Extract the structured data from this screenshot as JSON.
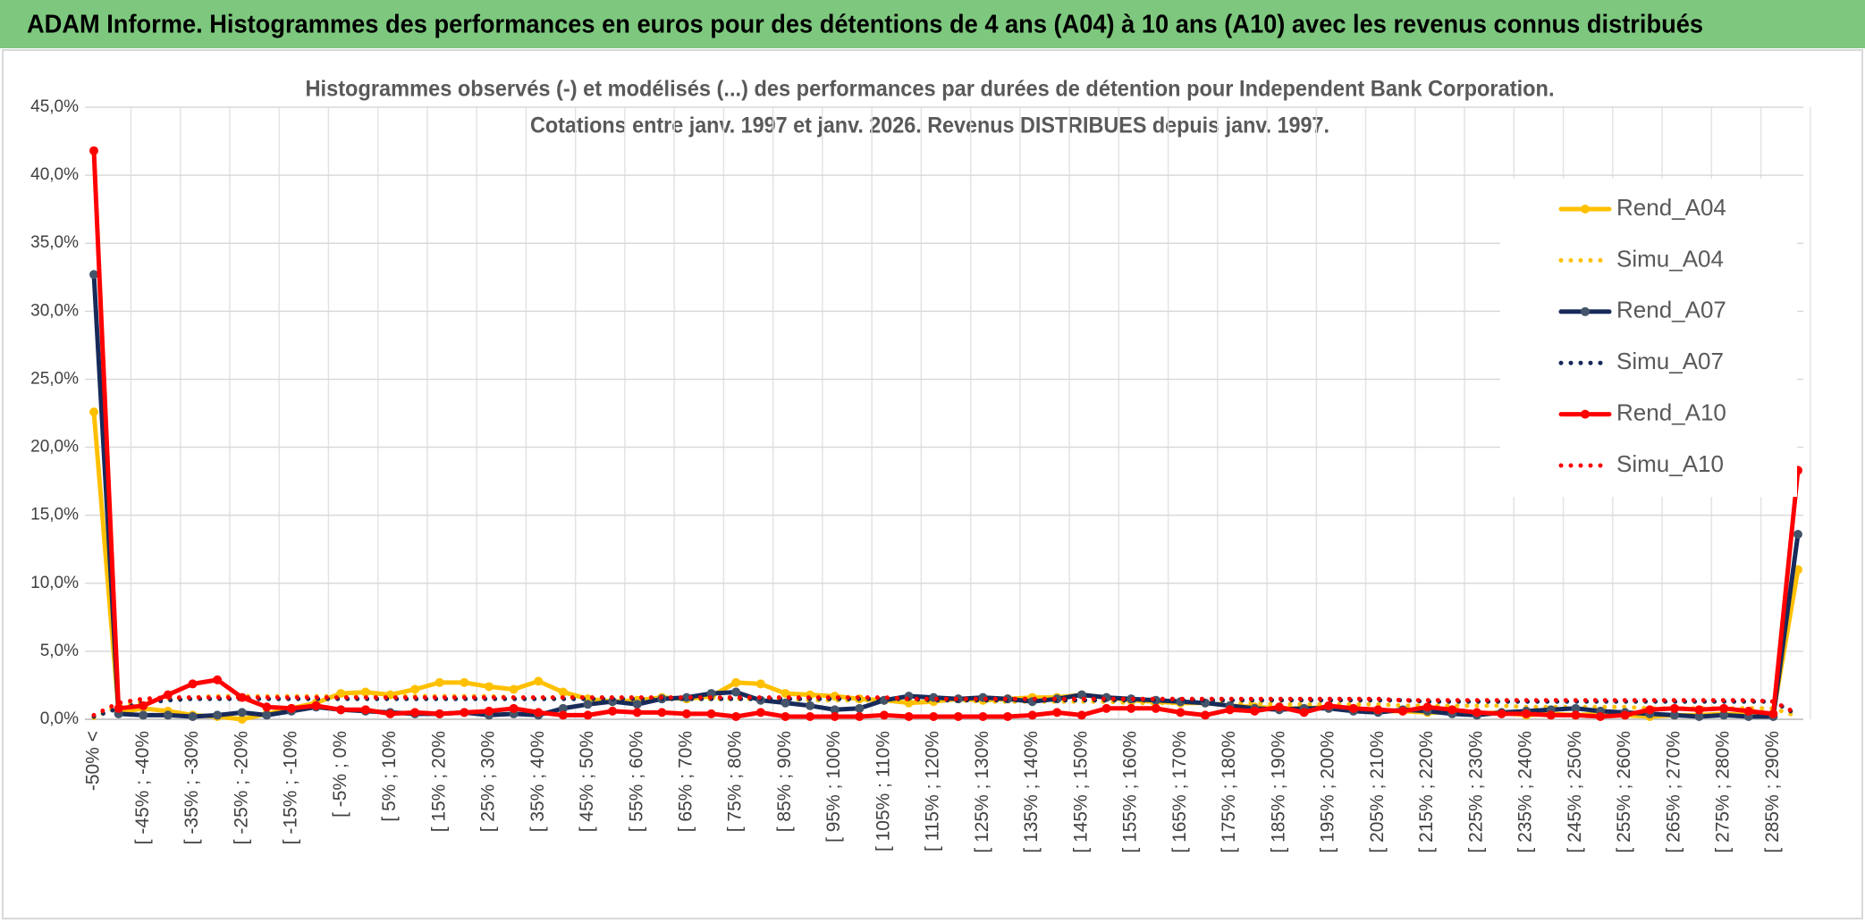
{
  "header": {
    "title": "ADAM Informe. Histogrammes des performances en euros pour des détentions de 4 ans (A04) à 10 ans (A10) avec les revenus connus distribués"
  },
  "chart_data": {
    "type": "line",
    "title": "Histogrammes observés (-) et modélisés (...) des performances par durées de détention pour Independent Bank Corporation.",
    "subtitle": "Cotations entre janv. 1997 et janv. 2026.  Revenus DISTRIBUES depuis janv. 1997.",
    "categories": [
      "-50% <",
      null,
      "[ -45% ; -40%",
      null,
      "[ -35% ; -30%",
      null,
      "[ -25% ; -20%",
      null,
      "[ -15% ; -10%",
      null,
      "[ -5% ; 0%",
      null,
      "[ 5% ; 10%",
      null,
      "[ 15% ; 20%",
      null,
      "[ 25% ; 30%",
      null,
      "[ 35% ; 40%",
      null,
      "[ 45% ; 50%",
      null,
      "[ 55% ; 60%",
      null,
      "[ 65% ; 70%",
      null,
      "[ 75% ; 80%",
      null,
      "[ 85% ; 90%",
      null,
      "[ 95% ; 100%",
      null,
      "[ 105% ; 110%",
      null,
      "[ 115% ; 120%",
      null,
      "[ 125% ; 130%",
      null,
      "[ 135% ; 140%",
      null,
      "[ 145% ; 150%",
      null,
      "[ 155% ; 160%",
      null,
      "[ 165% ; 170%",
      null,
      "[ 175% ; 180%",
      null,
      "[ 185% ; 190%",
      null,
      "[ 195% ; 200%",
      null,
      "[ 205% ; 210%",
      null,
      "[ 215% ; 220%",
      null,
      "[ 225% ; 230%",
      null,
      "[ 235% ; 240%",
      null,
      "[ 245% ; 250%",
      null,
      "[ 255% ; 260%",
      null,
      "[ 265% ; 270%",
      null,
      "[ 275% ; 280%",
      null,
      "[ 285% ; 290%",
      null
    ],
    "series": [
      {
        "name": "Rend_A04",
        "color": "#ffc000",
        "line_style": "solid",
        "values": [
          22.6,
          0.5,
          0.8,
          0.6,
          0.3,
          0.2,
          0.0,
          0.4,
          0.8,
          1.2,
          1.9,
          2.0,
          1.8,
          2.2,
          2.7,
          2.7,
          2.4,
          2.2,
          2.8,
          2.0,
          1.5,
          1.3,
          1.4,
          1.6,
          1.5,
          1.7,
          2.7,
          2.6,
          1.9,
          1.8,
          1.7,
          1.5,
          1.4,
          1.2,
          1.3,
          1.5,
          1.4,
          1.5,
          1.6,
          1.6,
          1.8,
          1.6,
          1.4,
          1.3,
          1.2,
          1.2,
          1.0,
          0.9,
          0.8,
          0.8,
          0.9,
          0.7,
          0.6,
          0.6,
          0.5,
          0.5,
          0.4,
          0.5,
          0.3,
          0.4,
          0.3,
          0.4,
          0.3,
          0.2,
          0.3,
          0.3,
          0.4,
          0.3,
          0.4,
          11.0
        ]
      },
      {
        "name": "Simu_A04",
        "color": "#ffc000",
        "line_style": "dotted",
        "values": [
          0.1,
          1.0,
          1.3,
          1.5,
          1.6,
          1.7,
          1.7,
          1.7,
          1.7,
          1.7,
          1.7,
          1.7,
          1.7,
          1.7,
          1.7,
          1.7,
          1.7,
          1.6,
          1.6,
          1.6,
          1.6,
          1.6,
          1.6,
          1.5,
          1.5,
          1.5,
          1.5,
          1.5,
          1.5,
          1.4,
          1.4,
          1.4,
          1.4,
          1.4,
          1.4,
          1.4,
          1.3,
          1.3,
          1.3,
          1.3,
          1.3,
          1.3,
          1.2,
          1.2,
          1.2,
          1.2,
          1.2,
          1.2,
          1.1,
          1.1,
          1.1,
          1.1,
          1.1,
          1.0,
          1.0,
          1.0,
          1.0,
          1.0,
          0.9,
          0.9,
          0.9,
          0.9,
          0.9,
          0.8,
          0.8,
          0.8,
          0.8,
          0.8,
          0.8,
          0.2
        ]
      },
      {
        "name": "Rend_A07",
        "color": "#172a5a",
        "line_style": "solid",
        "values": [
          32.7,
          0.4,
          0.3,
          0.3,
          0.2,
          0.3,
          0.5,
          0.3,
          0.6,
          0.9,
          0.7,
          0.6,
          0.5,
          0.4,
          0.4,
          0.5,
          0.3,
          0.4,
          0.3,
          0.8,
          1.1,
          1.3,
          1.1,
          1.5,
          1.6,
          1.9,
          2.0,
          1.4,
          1.2,
          1.0,
          0.7,
          0.8,
          1.4,
          1.7,
          1.6,
          1.5,
          1.6,
          1.5,
          1.3,
          1.5,
          1.8,
          1.6,
          1.5,
          1.4,
          1.3,
          1.2,
          1.0,
          0.8,
          0.7,
          0.8,
          0.8,
          0.6,
          0.5,
          0.7,
          0.6,
          0.4,
          0.3,
          0.5,
          0.6,
          0.7,
          0.8,
          0.6,
          0.5,
          0.4,
          0.3,
          0.2,
          0.3,
          0.2,
          0.2,
          13.6
        ]
      },
      {
        "name": "Simu_A07",
        "color": "#172a5a",
        "line_style": "dotted",
        "values": [
          0.2,
          0.8,
          1.2,
          1.4,
          1.5,
          1.5,
          1.5,
          1.5,
          1.5,
          1.5,
          1.5,
          1.5,
          1.5,
          1.5,
          1.5,
          1.5,
          1.5,
          1.5,
          1.5,
          1.5,
          1.5,
          1.5,
          1.5,
          1.5,
          1.5,
          1.5,
          1.5,
          1.5,
          1.5,
          1.5,
          1.5,
          1.5,
          1.5,
          1.5,
          1.4,
          1.4,
          1.4,
          1.4,
          1.4,
          1.4,
          1.4,
          1.4,
          1.4,
          1.4,
          1.4,
          1.4,
          1.4,
          1.4,
          1.4,
          1.4,
          1.4,
          1.4,
          1.4,
          1.4,
          1.3,
          1.3,
          1.3,
          1.3,
          1.3,
          1.3,
          1.3,
          1.3,
          1.3,
          1.3,
          1.3,
          1.3,
          1.3,
          1.3,
          1.3,
          0.3
        ]
      },
      {
        "name": "Rend_A10",
        "color": "#ff0000",
        "line_style": "solid",
        "values": [
          41.8,
          0.8,
          1.0,
          1.8,
          2.6,
          2.9,
          1.6,
          0.9,
          0.8,
          1.0,
          0.7,
          0.7,
          0.4,
          0.5,
          0.4,
          0.5,
          0.6,
          0.8,
          0.5,
          0.3,
          0.3,
          0.6,
          0.5,
          0.5,
          0.4,
          0.4,
          0.2,
          0.5,
          0.2,
          0.2,
          0.2,
          0.2,
          0.3,
          0.2,
          0.2,
          0.2,
          0.2,
          0.2,
          0.3,
          0.5,
          0.3,
          0.8,
          0.8,
          0.8,
          0.5,
          0.3,
          0.7,
          0.6,
          0.9,
          0.5,
          1.0,
          0.8,
          0.7,
          0.6,
          0.9,
          0.7,
          0.5,
          0.4,
          0.4,
          0.3,
          0.3,
          0.2,
          0.3,
          0.7,
          0.8,
          0.7,
          0.8,
          0.6,
          0.4,
          18.3
        ]
      },
      {
        "name": "Simu_A10",
        "color": "#ff0000",
        "line_style": "dotted",
        "values": [
          0.3,
          1.2,
          1.5,
          1.6,
          1.6,
          1.6,
          1.6,
          1.6,
          1.6,
          1.6,
          1.6,
          1.6,
          1.6,
          1.6,
          1.6,
          1.6,
          1.6,
          1.6,
          1.6,
          1.6,
          1.6,
          1.6,
          1.6,
          1.6,
          1.6,
          1.6,
          1.6,
          1.6,
          1.6,
          1.6,
          1.6,
          1.6,
          1.6,
          1.5,
          1.5,
          1.5,
          1.5,
          1.5,
          1.5,
          1.5,
          1.5,
          1.5,
          1.5,
          1.5,
          1.5,
          1.5,
          1.5,
          1.5,
          1.5,
          1.5,
          1.5,
          1.5,
          1.5,
          1.4,
          1.4,
          1.4,
          1.4,
          1.4,
          1.4,
          1.4,
          1.4,
          1.4,
          1.4,
          1.4,
          1.4,
          1.4,
          1.4,
          1.4,
          1.3,
          0.4
        ]
      }
    ],
    "ylim": [
      0,
      45
    ],
    "yticks": [
      {
        "value": 0,
        "label": "0,0%"
      },
      {
        "value": 5,
        "label": "5,0%"
      },
      {
        "value": 10,
        "label": "10,0%"
      },
      {
        "value": 15,
        "label": "15,0%"
      },
      {
        "value": 20,
        "label": "20,0%"
      },
      {
        "value": 25,
        "label": "25,0%"
      },
      {
        "value": 30,
        "label": "30,0%"
      },
      {
        "value": 35,
        "label": "35,0%"
      },
      {
        "value": 40,
        "label": "40,0%"
      },
      {
        "value": 45,
        "label": "45,0%"
      }
    ],
    "grid": true
  }
}
